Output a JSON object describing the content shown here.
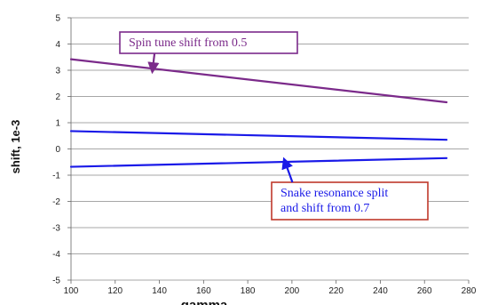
{
  "chart_data": {
    "type": "line",
    "xlabel": "gamma",
    "ylabel": "shift, 1e-3",
    "xlim": [
      100,
      280
    ],
    "ylim": [
      -5,
      5
    ],
    "x_ticks": [
      "100",
      "120",
      "140",
      "160",
      "180",
      "200",
      "220",
      "240",
      "260",
      "280"
    ],
    "y_ticks": [
      "5",
      "4",
      "3",
      "2",
      "1",
      "0",
      "-1",
      "-2",
      "-3",
      "-4",
      "-5"
    ],
    "grid": "horizontal",
    "series": [
      {
        "color": "#7b2a8a",
        "x": [
          100,
          270
        ],
        "y": [
          3.42,
          1.78
        ]
      },
      {
        "color": "#1a1ae8",
        "x": [
          100,
          270
        ],
        "y": [
          0.68,
          0.35
        ]
      },
      {
        "color": "#1a1ae8",
        "x": [
          100,
          270
        ],
        "y": [
          -0.68,
          -0.35
        ]
      }
    ],
    "annotations": [
      {
        "lines": [
          "Spin tune shift from 0.5"
        ],
        "text_color": "#7b2a8a",
        "border_color": "#7b2a8a",
        "arrow_color": "#7b2a8a",
        "arrow_to": [
          137,
          3.08
        ]
      },
      {
        "lines": [
          "Snake resonance split",
          " and shift from 0.7"
        ],
        "text_color": "#1a1ae8",
        "border_color": "#c0392b",
        "arrow_color": "#1a1ae8",
        "arrow_to": [
          197,
          -0.52
        ]
      }
    ]
  }
}
